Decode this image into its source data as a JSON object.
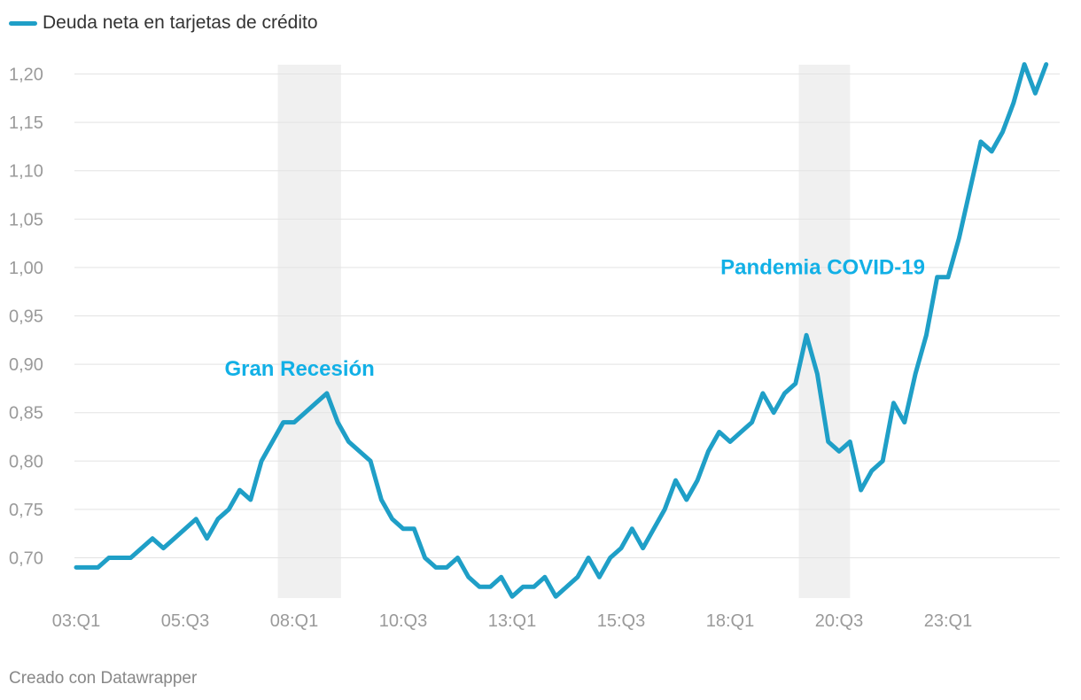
{
  "legend": {
    "label": "Deuda neta en tarjetas de crédito",
    "color": "#1f9fc7"
  },
  "footer": {
    "credit": "Creado con Datawrapper"
  },
  "chart_data": {
    "type": "line",
    "ylim": [
      0.66,
      1.21
    ],
    "y_ticks": [
      0.7,
      0.75,
      0.8,
      0.85,
      0.9,
      0.95,
      1.0,
      1.05,
      1.1,
      1.15,
      1.2
    ],
    "y_tick_labels": [
      "0,70",
      "0,75",
      "0,80",
      "0,85",
      "0,90",
      "0,95",
      "1,00",
      "1,05",
      "1,10",
      "1,15",
      "1,20"
    ],
    "x_tick_labels": [
      {
        "index": 0,
        "label": "03:Q1"
      },
      {
        "index": 10,
        "label": "05:Q3"
      },
      {
        "index": 20,
        "label": "08:Q1"
      },
      {
        "index": 30,
        "label": "10:Q3"
      },
      {
        "index": 40,
        "label": "13:Q1"
      },
      {
        "index": 50,
        "label": "15:Q3"
      },
      {
        "index": 60,
        "label": "18:Q1"
      },
      {
        "index": 70,
        "label": "20:Q3"
      },
      {
        "index": 80,
        "label": "23:Q1"
      }
    ],
    "shaded_periods": [
      {
        "start": 18.5,
        "end": 24.3
      },
      {
        "start": 66.3,
        "end": 71
      }
    ],
    "annotations": [
      {
        "text": "Gran Recesión",
        "x_index": 20.5,
        "y": 0.888,
        "color": "#12b0e6"
      },
      {
        "text": "Pandemia COVID-19",
        "x_index": 68.5,
        "y": 0.993,
        "color": "#12b0e6"
      }
    ],
    "series": [
      {
        "name": "Deuda neta en tarjetas de crédito",
        "color": "#1f9fc7",
        "values": [
          0.69,
          0.69,
          0.69,
          0.7,
          0.7,
          0.7,
          0.71,
          0.72,
          0.71,
          0.72,
          0.73,
          0.74,
          0.72,
          0.74,
          0.75,
          0.77,
          0.76,
          0.8,
          0.82,
          0.84,
          0.84,
          0.85,
          0.86,
          0.87,
          0.84,
          0.82,
          0.81,
          0.8,
          0.76,
          0.74,
          0.73,
          0.73,
          0.7,
          0.69,
          0.69,
          0.7,
          0.68,
          0.67,
          0.67,
          0.68,
          0.66,
          0.67,
          0.67,
          0.68,
          0.66,
          0.67,
          0.68,
          0.7,
          0.68,
          0.7,
          0.71,
          0.73,
          0.71,
          0.73,
          0.75,
          0.78,
          0.76,
          0.78,
          0.81,
          0.83,
          0.82,
          0.83,
          0.84,
          0.87,
          0.85,
          0.87,
          0.88,
          0.93,
          0.89,
          0.82,
          0.81,
          0.82,
          0.77,
          0.79,
          0.8,
          0.86,
          0.84,
          0.89,
          0.93,
          0.99,
          0.99,
          1.03,
          1.08,
          1.13,
          1.12,
          1.14,
          1.17,
          1.21,
          1.18,
          1.21
        ]
      }
    ]
  }
}
